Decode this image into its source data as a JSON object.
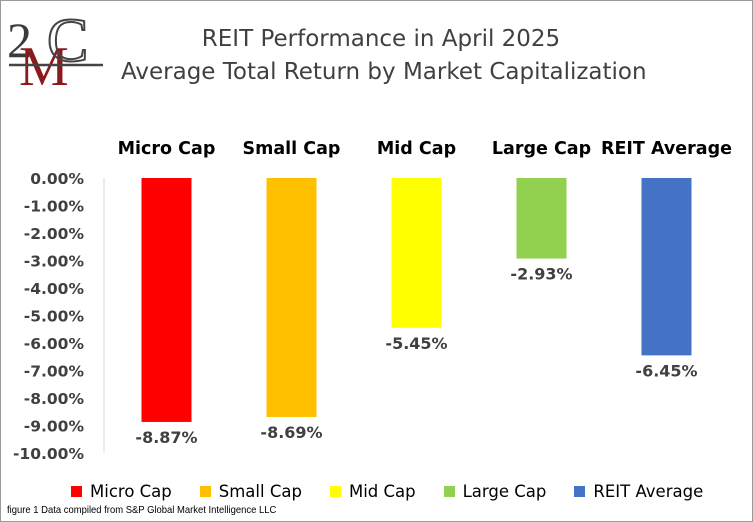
{
  "logo": {
    "text": "2MC"
  },
  "chart_data": {
    "type": "bar",
    "title": "REIT Performance  in April 2025",
    "subtitle": "Average Total Return by Market Capitalization",
    "categories": [
      "Micro Cap",
      "Small Cap",
      "Mid Cap",
      "Large Cap",
      "REIT Average"
    ],
    "values": [
      -8.87,
      -8.69,
      -5.45,
      -2.93,
      -6.45
    ],
    "value_labels": [
      "-8.87%",
      "-8.69%",
      "-5.45%",
      "-2.93%",
      "-6.45%"
    ],
    "colors": [
      "#ff0000",
      "#ffc000",
      "#ffff00",
      "#92d050",
      "#4472c4"
    ],
    "ylim": [
      -10,
      0
    ],
    "yticks": [
      "0.00%",
      "-1.00%",
      "-2.00%",
      "-3.00%",
      "-4.00%",
      "-5.00%",
      "-6.00%",
      "-7.00%",
      "-8.00%",
      "-9.00%",
      "-10.00%"
    ],
    "category_labels_position": "top",
    "legend": {
      "position": "bottom",
      "entries": [
        "Micro Cap",
        "Small Cap",
        "Mid Cap",
        "Large Cap",
        "REIT Average"
      ]
    },
    "grid": false
  },
  "footnote": "figure 1 Data compiled from S&P Global Market Intelligence LLC"
}
